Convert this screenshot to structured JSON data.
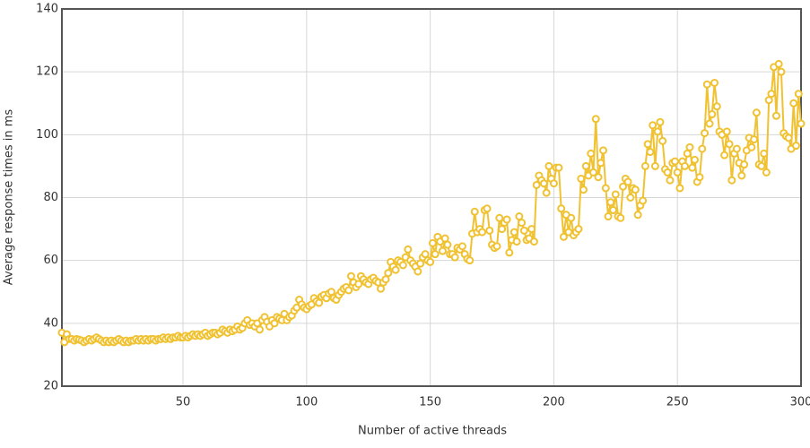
{
  "chart_data": {
    "type": "line",
    "x_label": "Number of active threads",
    "y_label": "Average response times in ms",
    "xlim": [
      1,
      300
    ],
    "ylim": [
      20,
      140
    ],
    "xticks": [
      50,
      100,
      150,
      200,
      250,
      300
    ],
    "yticks": [
      20,
      40,
      60,
      80,
      100,
      120,
      140
    ],
    "grid": true,
    "x": [
      1,
      2,
      3,
      4,
      5,
      6,
      7,
      8,
      9,
      10,
      11,
      12,
      13,
      14,
      15,
      16,
      17,
      18,
      19,
      20,
      21,
      22,
      23,
      24,
      25,
      26,
      27,
      28,
      29,
      30,
      31,
      32,
      33,
      34,
      35,
      36,
      37,
      38,
      39,
      40,
      41,
      42,
      43,
      44,
      45,
      46,
      47,
      48,
      49,
      50,
      51,
      52,
      53,
      54,
      55,
      56,
      57,
      58,
      59,
      60,
      61,
      62,
      63,
      64,
      65,
      66,
      67,
      68,
      69,
      70,
      71,
      72,
      73,
      74,
      75,
      76,
      77,
      78,
      79,
      80,
      81,
      82,
      83,
      84,
      85,
      86,
      87,
      88,
      89,
      90,
      91,
      92,
      93,
      94,
      95,
      96,
      97,
      98,
      99,
      100,
      101,
      102,
      103,
      104,
      105,
      106,
      107,
      108,
      109,
      110,
      111,
      112,
      113,
      114,
      115,
      116,
      117,
      118,
      119,
      120,
      121,
      122,
      123,
      124,
      125,
      126,
      127,
      128,
      129,
      130,
      131,
      132,
      133,
      134,
      135,
      136,
      137,
      138,
      139,
      140,
      141,
      142,
      143,
      144,
      145,
      146,
      147,
      148,
      149,
      150,
      151,
      152,
      153,
      154,
      155,
      156,
      157,
      158,
      159,
      160,
      161,
      162,
      163,
      164,
      165,
      166,
      167,
      168,
      169,
      170,
      171,
      172,
      173,
      174,
      175,
      176,
      177,
      178,
      179,
      180,
      181,
      182,
      183,
      184,
      185,
      186,
      187,
      188,
      189,
      190,
      191,
      192,
      193,
      194,
      195,
      196,
      197,
      198,
      199,
      200,
      201,
      202,
      203,
      204,
      205,
      206,
      207,
      208,
      209,
      210,
      211,
      212,
      213,
      214,
      215,
      216,
      217,
      218,
      219,
      220,
      221,
      222,
      223,
      224,
      225,
      226,
      227,
      228,
      229,
      230,
      231,
      232,
      233,
      234,
      235,
      236,
      237,
      238,
      239,
      240,
      241,
      242,
      243,
      244,
      245,
      246,
      247,
      248,
      249,
      250,
      251,
      252,
      253,
      254,
      255,
      256,
      257,
      258,
      259,
      260,
      261,
      262,
      263,
      264,
      265,
      266,
      267,
      268,
      269,
      270,
      271,
      272,
      273,
      274,
      275,
      276,
      277,
      278,
      279,
      280,
      281,
      282,
      283,
      284,
      285,
      286,
      287,
      288,
      289,
      290,
      291,
      292,
      293,
      294,
      295,
      296,
      297,
      298,
      299,
      300
    ],
    "series": [
      {
        "color": "#f0c232",
        "values": [
          37,
          34,
          36.5,
          35,
          35,
          34.5,
          35,
          34.8,
          34.5,
          34,
          34.5,
          35,
          34.5,
          35,
          35.5,
          35,
          34.5,
          34,
          34.5,
          34,
          34.5,
          34,
          34.5,
          35,
          34.5,
          34,
          34.5,
          34,
          34.5,
          34.5,
          35,
          34.5,
          35,
          34.5,
          35,
          34.5,
          35,
          35,
          34.5,
          35,
          35,
          35.5,
          35,
          35.5,
          35,
          35.5,
          35.5,
          36,
          35.5,
          35.5,
          36,
          35.5,
          36,
          36.5,
          36,
          36.5,
          36,
          36.5,
          37,
          36,
          36.5,
          37,
          37,
          36.5,
          37,
          38,
          37.5,
          37,
          38,
          37.5,
          38,
          39,
          38,
          38.5,
          40,
          41,
          39.5,
          40,
          39,
          40,
          38,
          41,
          42,
          40.5,
          39,
          41,
          40,
          42,
          41.5,
          41,
          43,
          41,
          42,
          42.5,
          44,
          45,
          47.5,
          46,
          45,
          44.5,
          45.5,
          46,
          48,
          47,
          46.5,
          48.5,
          49,
          48,
          49.5,
          50,
          48,
          47.5,
          49,
          50,
          51,
          51.5,
          50.5,
          55,
          53,
          51.5,
          52.5,
          55,
          54,
          53,
          52.5,
          54,
          54.5,
          53.5,
          53,
          51,
          53,
          54,
          56,
          59.5,
          58,
          57,
          60,
          59.5,
          58.5,
          61,
          63.5,
          60,
          59,
          58,
          56.5,
          59,
          61,
          62,
          60,
          59.5,
          65.5,
          62,
          67.5,
          66,
          63,
          67,
          65,
          62,
          62,
          61,
          64,
          63.5,
          64.5,
          62,
          60.5,
          60,
          68.5,
          75.5,
          69,
          70,
          69,
          76,
          76.5,
          69.5,
          65,
          64,
          64.5,
          73.5,
          70,
          72,
          73,
          62.5,
          66.5,
          69,
          66,
          74,
          72,
          69.5,
          66.5,
          67,
          70,
          66,
          84,
          87,
          85.5,
          84.5,
          81.5,
          90,
          86,
          84.5,
          89.5,
          89.5,
          76.5,
          67.5,
          74.5,
          69,
          73.5,
          68,
          69,
          70,
          86,
          82.5,
          90,
          87,
          94,
          88,
          105,
          86.5,
          91,
          95,
          83,
          74,
          78.5,
          76,
          81,
          74,
          73.5,
          83.5,
          86,
          85,
          80,
          83,
          82.5,
          74.5,
          77.5,
          79,
          90,
          97,
          94.5,
          103,
          90,
          101,
          104,
          98,
          89,
          88,
          85.5,
          91,
          91.5,
          88,
          83,
          91.5,
          90,
          94,
          96,
          89.5,
          92,
          85,
          86.5,
          95.5,
          100.5,
          116,
          103.5,
          106.5,
          116.5,
          109,
          101,
          100,
          93.5,
          101,
          97,
          85.5,
          94,
          95.5,
          91,
          87,
          90.5,
          95,
          99,
          96,
          98.5,
          107,
          90.5,
          90,
          94,
          88,
          111,
          113,
          121.5,
          106,
          122.5,
          120,
          100.5,
          99.5,
          99,
          95.5,
          110,
          96.5,
          113,
          103.5
        ]
      }
    ]
  }
}
